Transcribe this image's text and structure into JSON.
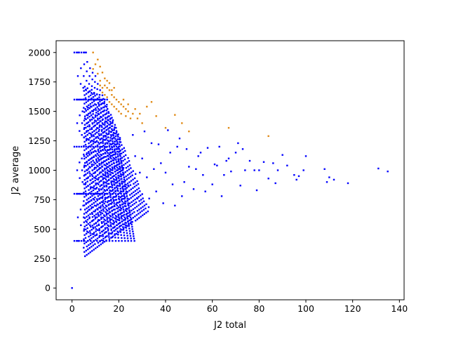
{
  "chart_data": {
    "type": "scatter",
    "title": "",
    "xlabel": "J2 total",
    "ylabel": "J2 average",
    "xlim": [
      -6.8,
      142
    ],
    "ylim": [
      -100,
      2100
    ],
    "xticks": [
      0,
      20,
      40,
      60,
      80,
      100,
      120,
      140
    ],
    "yticks": [
      0,
      250,
      500,
      750,
      1000,
      1250,
      1500,
      1750,
      2000
    ],
    "grid": false,
    "legend": "none",
    "colors": {
      "normal": "#0000ff",
      "highlight": "#e08a16"
    },
    "rule": "points are structured as sums of 400-unit increments; points with average above the upper envelope (approx. 2300 - 50*total) are highlighted",
    "series": [
      {
        "color": "#0000ff",
        "bands": [
          {
            "y": 0,
            "x": [
              0,
              0
            ]
          },
          {
            "y": 400,
            "x": [
              1,
              5
            ]
          },
          {
            "y": 800,
            "x": [
              1,
              15
            ]
          },
          {
            "y": 1200,
            "x": [
              1,
              20
            ]
          },
          {
            "y": 1600,
            "x": [
              1,
              15
            ]
          },
          {
            "y": 2000,
            "x": [
              1,
              6
            ]
          }
        ],
        "arcs_denominators": [
          2,
          3,
          4,
          5,
          6,
          7,
          8,
          9,
          10,
          11,
          12,
          13,
          14,
          15,
          16,
          17,
          18,
          19,
          20
        ],
        "scattered_points": [
          [
            20,
            1180
          ],
          [
            22,
            1020
          ],
          [
            24,
            870
          ],
          [
            26,
            1300
          ],
          [
            28,
            760
          ],
          [
            30,
            1100
          ],
          [
            32,
            940
          ],
          [
            34,
            1230
          ],
          [
            36,
            820
          ],
          [
            38,
            1060
          ],
          [
            40,
            980
          ],
          [
            42,
            1150
          ],
          [
            44,
            700
          ],
          [
            46,
            1270
          ],
          [
            48,
            900
          ],
          [
            50,
            1030
          ],
          [
            52,
            840
          ],
          [
            54,
            1120
          ],
          [
            56,
            960
          ],
          [
            58,
            1190
          ],
          [
            60,
            880
          ],
          [
            62,
            1040
          ],
          [
            64,
            780
          ],
          [
            66,
            1080
          ],
          [
            68,
            990
          ],
          [
            70,
            1150
          ],
          [
            72,
            870
          ],
          [
            74,
            1000
          ],
          [
            76,
            1080
          ],
          [
            79,
            830
          ],
          [
            82,
            1070
          ],
          [
            84,
            930
          ],
          [
            86,
            1060
          ],
          [
            88,
            1000
          ],
          [
            90,
            1130
          ],
          [
            92,
            1040
          ],
          [
            95,
            960
          ],
          [
            97,
            950
          ],
          [
            100,
            1120
          ],
          [
            108,
            1010
          ],
          [
            110,
            940
          ],
          [
            112,
            920
          ],
          [
            118,
            890
          ],
          [
            131,
            1015
          ],
          [
            135,
            990
          ],
          [
            41,
            1340
          ],
          [
            45,
            1200
          ],
          [
            55,
            1150
          ],
          [
            61,
            1050
          ],
          [
            63,
            1200
          ],
          [
            67,
            1100
          ],
          [
            71,
            1230
          ],
          [
            73,
            1180
          ],
          [
            78,
            1000
          ],
          [
            80,
            1000
          ],
          [
            87,
            890
          ],
          [
            96,
            920
          ],
          [
            109,
            900
          ],
          [
            99,
            1000
          ],
          [
            65,
            960
          ],
          [
            57,
            820
          ],
          [
            53,
            1010
          ],
          [
            49,
            1180
          ],
          [
            47,
            780
          ],
          [
            43,
            880
          ],
          [
            39,
            720
          ],
          [
            37,
            1220
          ],
          [
            35,
            1010
          ],
          [
            33,
            760
          ],
          [
            31,
            1330
          ],
          [
            29,
            980
          ],
          [
            27,
            1120
          ]
        ]
      },
      {
        "color": "#e08a16",
        "points": [
          [
            9,
            2000
          ],
          [
            10,
            1900
          ],
          [
            11,
            1820
          ],
          [
            12,
            1760
          ],
          [
            12,
            1720
          ],
          [
            13,
            1700
          ],
          [
            13,
            1660
          ],
          [
            14,
            1640
          ],
          [
            14,
            1720
          ],
          [
            15,
            1620
          ],
          [
            15,
            1760
          ],
          [
            16,
            1580
          ],
          [
            16,
            1680
          ],
          [
            17,
            1560
          ],
          [
            17,
            1640
          ],
          [
            18,
            1540
          ],
          [
            18,
            1700
          ],
          [
            19,
            1520
          ],
          [
            20,
            1500
          ],
          [
            21,
            1480
          ],
          [
            22,
            1600
          ],
          [
            23,
            1460
          ],
          [
            24,
            1560
          ],
          [
            25,
            1440
          ],
          [
            27,
            1520
          ],
          [
            29,
            1480
          ],
          [
            30,
            1400
          ],
          [
            32,
            1540
          ],
          [
            34,
            1580
          ],
          [
            36,
            1460
          ],
          [
            40,
            1360
          ],
          [
            44,
            1470
          ],
          [
            47,
            1400
          ],
          [
            50,
            1330
          ],
          [
            67,
            1360
          ],
          [
            84,
            1290
          ],
          [
            9,
            1860
          ],
          [
            10,
            1800
          ],
          [
            11,
            1940
          ],
          [
            12,
            1880
          ],
          [
            13,
            1830
          ],
          [
            14,
            1780
          ],
          [
            15,
            1700
          ],
          [
            16,
            1740
          ],
          [
            17,
            1680
          ],
          [
            18,
            1620
          ],
          [
            19,
            1600
          ],
          [
            20,
            1580
          ],
          [
            21,
            1560
          ],
          [
            22,
            1540
          ],
          [
            23,
            1520
          ],
          [
            24,
            1500
          ],
          [
            26,
            1480
          ],
          [
            28,
            1440
          ]
        ]
      }
    ]
  }
}
